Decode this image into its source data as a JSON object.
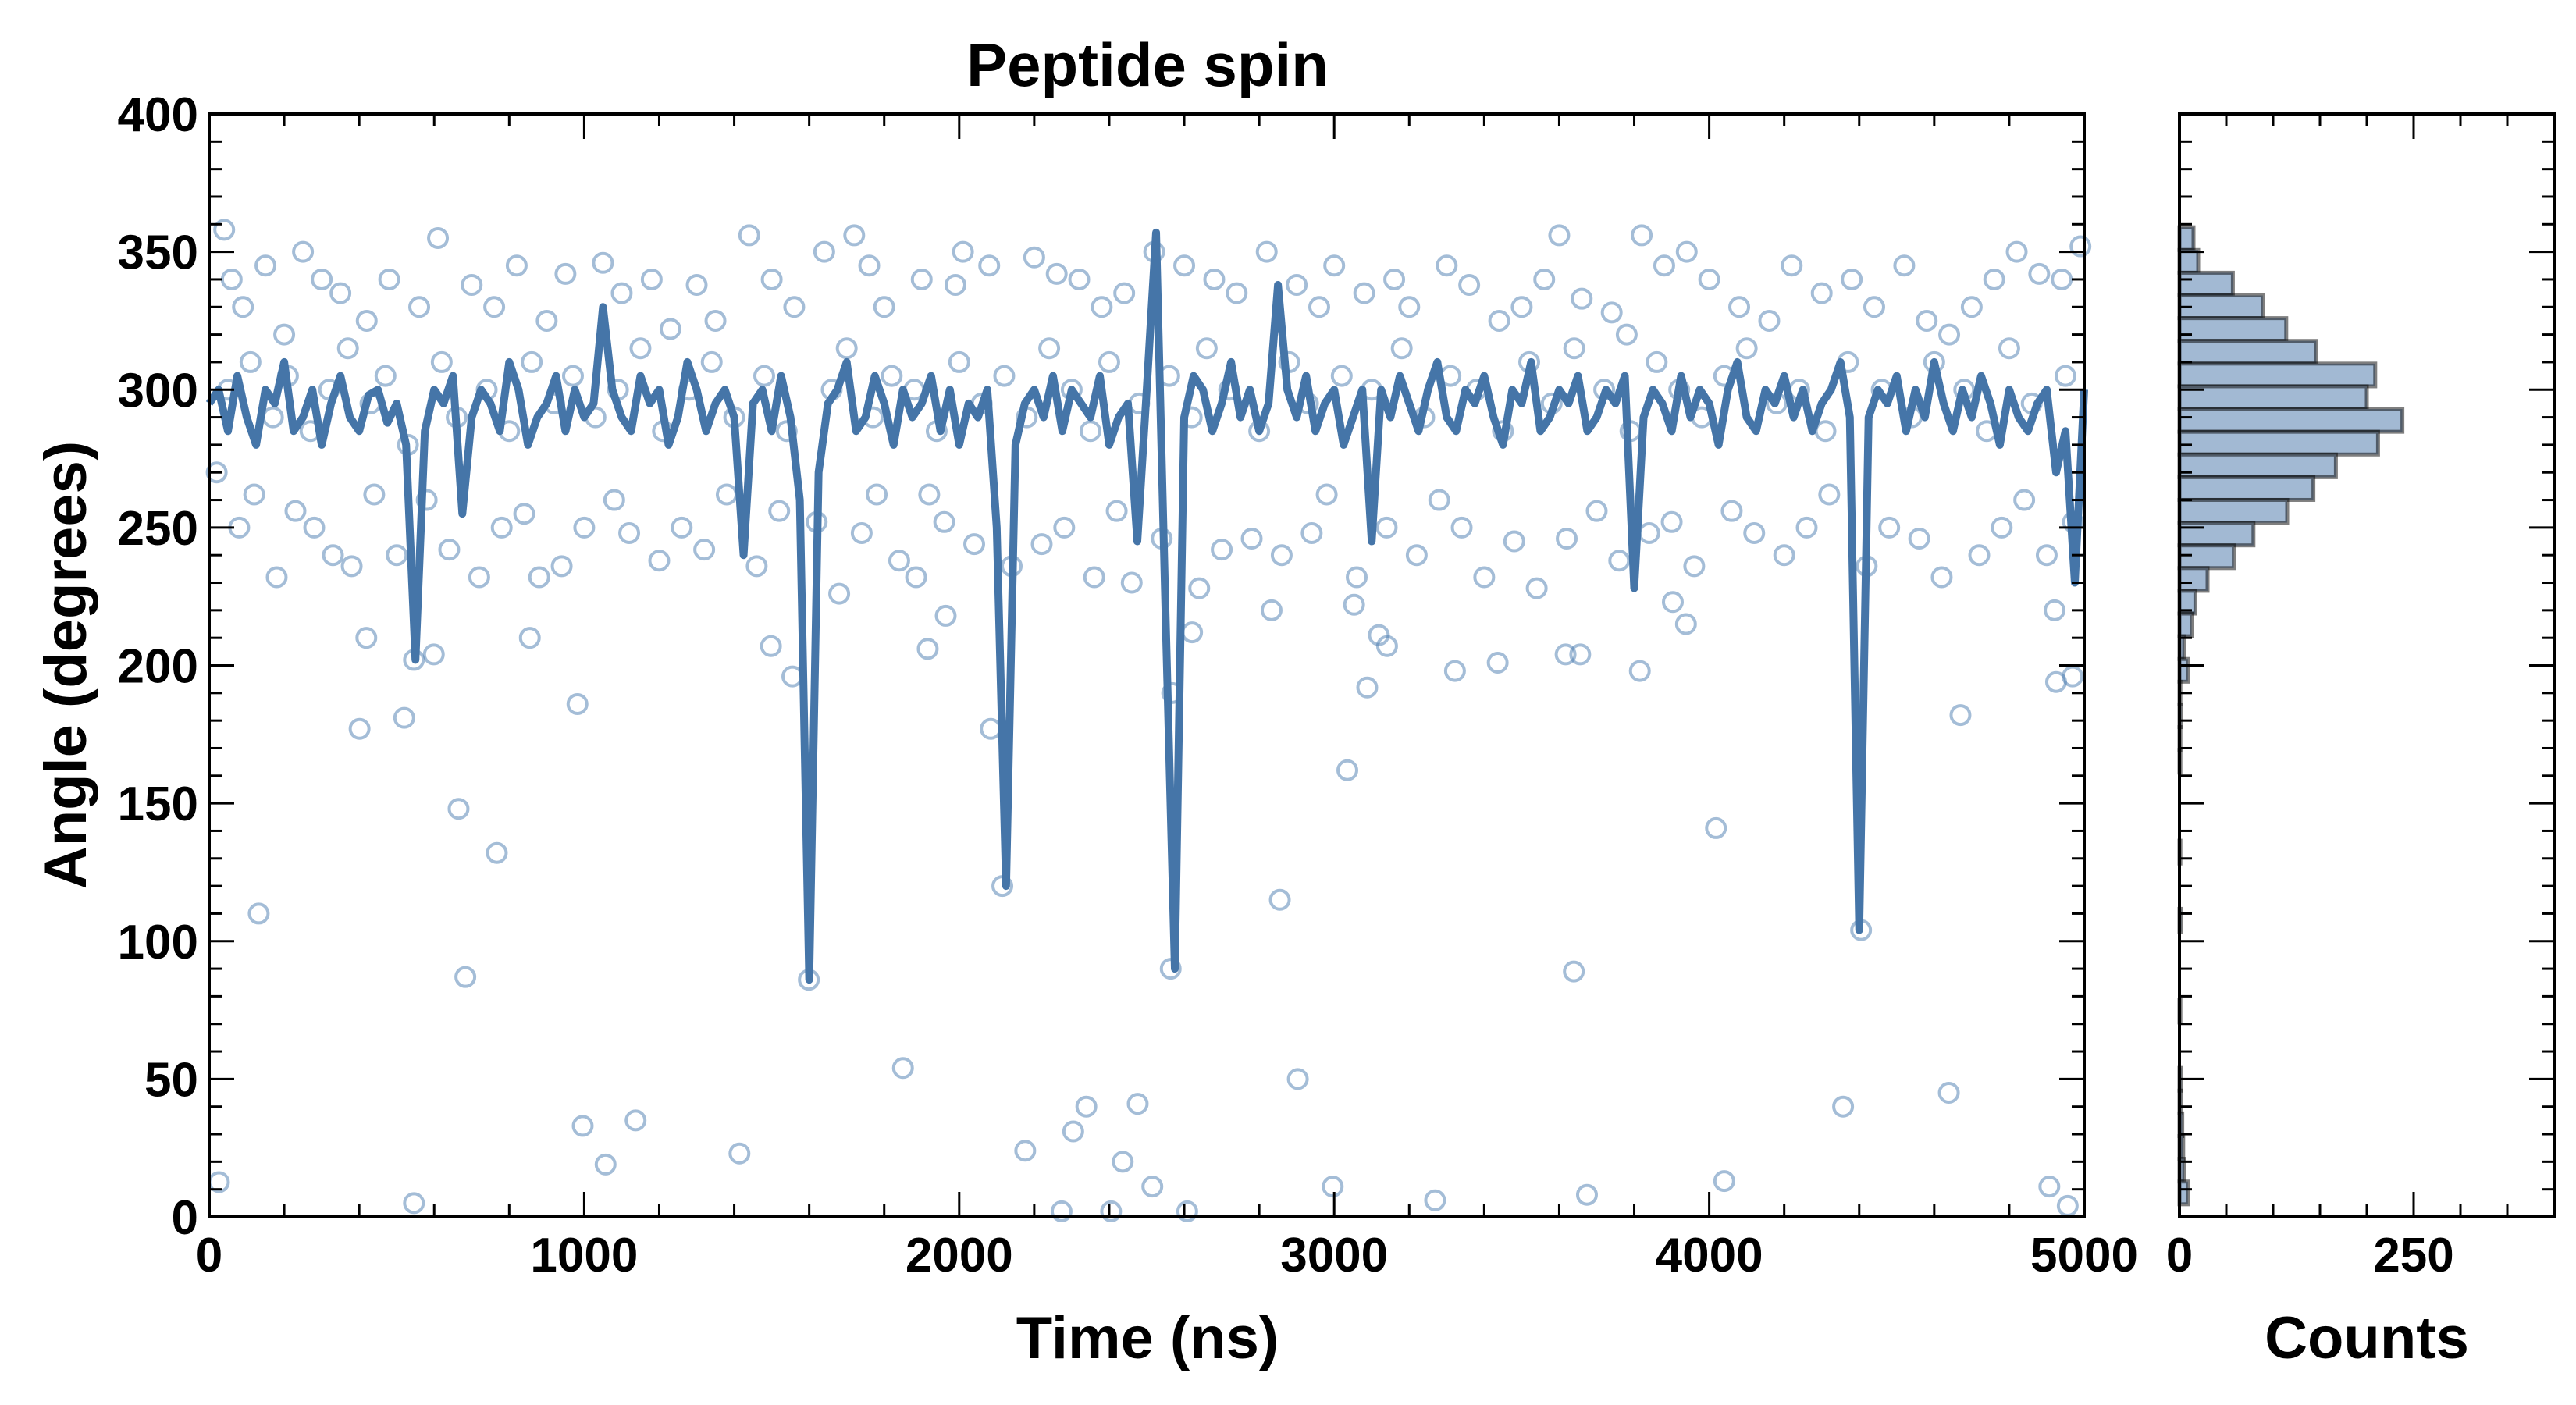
{
  "chart_data": [
    {
      "type": "scatter+line",
      "title": "Peptide spin",
      "xlabel": "Time (ns)",
      "ylabel": "Angle (degrees)",
      "xlim": [
        0,
        5000
      ],
      "ylim": [
        0,
        400
      ],
      "xticks": [
        "0",
        "1000",
        "2000",
        "3000",
        "4000",
        "5000"
      ],
      "yticks": [
        "0",
        "50",
        "100",
        "150",
        "200",
        "250",
        "300",
        "350",
        "400"
      ],
      "grid": false,
      "scatter_color": "#4a7bb0",
      "line_color": "#4575a8",
      "scatter_points": [
        [
          26,
          12.6
        ],
        [
          132,
          110
        ],
        [
          401,
          177
        ],
        [
          419,
          210
        ],
        [
          520,
          181
        ],
        [
          546,
          202
        ],
        [
          599,
          204
        ],
        [
          665,
          148
        ],
        [
          683,
          87
        ],
        [
          767,
          132
        ],
        [
          855,
          210
        ],
        [
          982,
          186
        ],
        [
          996,
          33
        ],
        [
          1057,
          19
        ],
        [
          1137,
          35
        ],
        [
          1414,
          23
        ],
        [
          546,
          5
        ],
        [
          1599,
          86
        ],
        [
          1850,
          54
        ],
        [
          1916,
          206
        ],
        [
          2084,
          177
        ],
        [
          2115,
          120
        ],
        [
          2176,
          24
        ],
        [
          2273,
          2
        ],
        [
          2304,
          31
        ],
        [
          2339,
          40
        ],
        [
          2405,
          2
        ],
        [
          2436,
          20
        ],
        [
          2476,
          41
        ],
        [
          2515,
          11
        ],
        [
          2564,
          90
        ],
        [
          2608,
          2
        ],
        [
          2568,
          190
        ],
        [
          2621,
          212
        ],
        [
          2855,
          115
        ],
        [
          2903,
          50
        ],
        [
          2996,
          11
        ],
        [
          3035,
          162
        ],
        [
          3088,
          192
        ],
        [
          3269,
          6
        ],
        [
          3322,
          198
        ],
        [
          3436,
          201
        ],
        [
          3639,
          89
        ],
        [
          3674,
          8
        ],
        [
          4018,
          141
        ],
        [
          4040,
          13
        ],
        [
          4357,
          40
        ],
        [
          4405,
          104
        ],
        [
          4639,
          45
        ],
        [
          4670,
          182
        ],
        [
          4907,
          11
        ],
        [
          4956,
          4
        ],
        [
          4925,
          194
        ],
        [
          4969,
          196
        ],
        [
          4921,
          220
        ],
        [
          3656,
          204
        ],
        [
          3617,
          204
        ],
        [
          3815,
          198
        ],
        [
          3938,
          215
        ],
        [
          3903,
          223
        ],
        [
          1498,
          207
        ],
        [
          1555,
          196
        ],
        [
          1964,
          218
        ],
        [
          1885,
          232
        ],
        [
          2833,
          220
        ],
        [
          3053,
          222
        ],
        [
          3119,
          211
        ],
        [
          3141,
          207
        ],
        [
          40,
          358
        ],
        [
          60,
          340
        ],
        [
          90,
          330
        ],
        [
          150,
          345
        ],
        [
          200,
          320
        ],
        [
          250,
          350
        ],
        [
          300,
          340
        ],
        [
          350,
          335
        ],
        [
          420,
          325
        ],
        [
          480,
          340
        ],
        [
          560,
          330
        ],
        [
          610,
          355
        ],
        [
          700,
          338
        ],
        [
          760,
          330
        ],
        [
          820,
          345
        ],
        [
          900,
          325
        ],
        [
          950,
          342
        ],
        [
          1050,
          346
        ],
        [
          1100,
          335
        ],
        [
          1180,
          340
        ],
        [
          1230,
          322
        ],
        [
          1300,
          338
        ],
        [
          1350,
          325
        ],
        [
          1440,
          356
        ],
        [
          1500,
          340
        ],
        [
          1560,
          330
        ],
        [
          1640,
          350
        ],
        [
          1720,
          356
        ],
        [
          1760,
          345
        ],
        [
          1800,
          330
        ],
        [
          1900,
          340
        ],
        [
          1990,
          338
        ],
        [
          2010,
          350
        ],
        [
          2080,
          345
        ],
        [
          2200,
          348
        ],
        [
          2260,
          342
        ],
        [
          2320,
          340
        ],
        [
          2380,
          330
        ],
        [
          2440,
          335
        ],
        [
          2520,
          350
        ],
        [
          2600,
          345
        ],
        [
          2680,
          340
        ],
        [
          2740,
          335
        ],
        [
          2820,
          350
        ],
        [
          2900,
          338
        ],
        [
          2960,
          330
        ],
        [
          3000,
          345
        ],
        [
          3080,
          335
        ],
        [
          3160,
          340
        ],
        [
          3200,
          330
        ],
        [
          3300,
          345
        ],
        [
          3360,
          338
        ],
        [
          3440,
          325
        ],
        [
          3500,
          330
        ],
        [
          3560,
          340
        ],
        [
          3600,
          356
        ],
        [
          3660,
          333
        ],
        [
          3740,
          328
        ],
        [
          3780,
          320
        ],
        [
          3820,
          356
        ],
        [
          3880,
          345
        ],
        [
          3940,
          350
        ],
        [
          4000,
          340
        ],
        [
          4080,
          330
        ],
        [
          4160,
          325
        ],
        [
          4220,
          345
        ],
        [
          4300,
          335
        ],
        [
          4380,
          340
        ],
        [
          4440,
          330
        ],
        [
          4520,
          345
        ],
        [
          4580,
          325
        ],
        [
          4640,
          320
        ],
        [
          4700,
          330
        ],
        [
          4760,
          340
        ],
        [
          4820,
          350
        ],
        [
          4880,
          342
        ],
        [
          4940,
          340
        ],
        [
          4990,
          352
        ],
        [
          20,
          270
        ],
        [
          80,
          250
        ],
        [
          120,
          262
        ],
        [
          180,
          232
        ],
        [
          230,
          256
        ],
        [
          280,
          250
        ],
        [
          330,
          240
        ],
        [
          380,
          236
        ],
        [
          440,
          262
        ],
        [
          500,
          240
        ],
        [
          580,
          260
        ],
        [
          640,
          242
        ],
        [
          720,
          232
        ],
        [
          780,
          250
        ],
        [
          840,
          255
        ],
        [
          880,
          232
        ],
        [
          940,
          236
        ],
        [
          1000,
          250
        ],
        [
          1080,
          260
        ],
        [
          1120,
          248
        ],
        [
          1200,
          238
        ],
        [
          1260,
          250
        ],
        [
          1320,
          242
        ],
        [
          1380,
          262
        ],
        [
          1460,
          236
        ],
        [
          1520,
          256
        ],
        [
          1620,
          252
        ],
        [
          1680,
          226
        ],
        [
          1740,
          248
        ],
        [
          1780,
          262
        ],
        [
          1840,
          238
        ],
        [
          1920,
          262
        ],
        [
          1960,
          252
        ],
        [
          2040,
          244
        ],
        [
          2140,
          236
        ],
        [
          2220,
          244
        ],
        [
          2280,
          250
        ],
        [
          2360,
          232
        ],
        [
          2420,
          256
        ],
        [
          2460,
          230
        ],
        [
          2540,
          246
        ],
        [
          2640,
          228
        ],
        [
          2700,
          242
        ],
        [
          2780,
          246
        ],
        [
          2860,
          240
        ],
        [
          2940,
          248
        ],
        [
          2980,
          262
        ],
        [
          3060,
          232
        ],
        [
          3140,
          250
        ],
        [
          3220,
          240
        ],
        [
          3280,
          260
        ],
        [
          3340,
          250
        ],
        [
          3400,
          232
        ],
        [
          3480,
          245
        ],
        [
          3540,
          228
        ],
        [
          3620,
          246
        ],
        [
          3700,
          256
        ],
        [
          3760,
          238
        ],
        [
          3840,
          248
        ],
        [
          3900,
          252
        ],
        [
          3960,
          236
        ],
        [
          4060,
          256
        ],
        [
          4120,
          248
        ],
        [
          4200,
          240
        ],
        [
          4260,
          250
        ],
        [
          4320,
          262
        ],
        [
          4420,
          236
        ],
        [
          4480,
          250
        ],
        [
          4560,
          246
        ],
        [
          4620,
          232
        ],
        [
          4720,
          240
        ],
        [
          4780,
          250
        ],
        [
          4840,
          260
        ],
        [
          4900,
          240
        ],
        [
          4970,
          252
        ],
        [
          50,
          300
        ],
        [
          110,
          310
        ],
        [
          170,
          290
        ],
        [
          210,
          305
        ],
        [
          270,
          285
        ],
        [
          320,
          300
        ],
        [
          370,
          315
        ],
        [
          430,
          295
        ],
        [
          470,
          305
        ],
        [
          530,
          280
        ],
        [
          620,
          310
        ],
        [
          660,
          290
        ],
        [
          740,
          300
        ],
        [
          800,
          285
        ],
        [
          860,
          310
        ],
        [
          920,
          295
        ],
        [
          970,
          305
        ],
        [
          1030,
          290
        ],
        [
          1090,
          300
        ],
        [
          1150,
          315
        ],
        [
          1210,
          285
        ],
        [
          1280,
          300
        ],
        [
          1340,
          310
        ],
        [
          1400,
          290
        ],
        [
          1480,
          305
        ],
        [
          1540,
          285
        ],
        [
          1660,
          300
        ],
        [
          1700,
          315
        ],
        [
          1770,
          290
        ],
        [
          1820,
          305
        ],
        [
          1880,
          300
        ],
        [
          1940,
          285
        ],
        [
          2000,
          310
        ],
        [
          2060,
          295
        ],
        [
          2120,
          305
        ],
        [
          2180,
          290
        ],
        [
          2240,
          315
        ],
        [
          2300,
          300
        ],
        [
          2350,
          285
        ],
        [
          2400,
          310
        ],
        [
          2480,
          295
        ],
        [
          2560,
          305
        ],
        [
          2620,
          290
        ],
        [
          2660,
          315
        ],
        [
          2720,
          300
        ],
        [
          2800,
          285
        ],
        [
          2880,
          310
        ],
        [
          2930,
          295
        ],
        [
          3020,
          305
        ],
        [
          3100,
          300
        ],
        [
          3180,
          315
        ],
        [
          3240,
          290
        ],
        [
          3310,
          305
        ],
        [
          3380,
          300
        ],
        [
          3450,
          285
        ],
        [
          3520,
          310
        ],
        [
          3580,
          295
        ],
        [
          3640,
          315
        ],
        [
          3720,
          300
        ],
        [
          3790,
          285
        ],
        [
          3860,
          310
        ],
        [
          3920,
          300
        ],
        [
          3980,
          290
        ],
        [
          4040,
          305
        ],
        [
          4100,
          315
        ],
        [
          4180,
          295
        ],
        [
          4240,
          300
        ],
        [
          4310,
          285
        ],
        [
          4370,
          310
        ],
        [
          4460,
          300
        ],
        [
          4540,
          290
        ],
        [
          4600,
          310
        ],
        [
          4680,
          300
        ],
        [
          4740,
          285
        ],
        [
          4800,
          315
        ],
        [
          4860,
          295
        ],
        [
          4950,
          305
        ]
      ],
      "line": {
        "x_start": 0,
        "x_step": 25,
        "y": [
          295,
          300,
          285,
          305,
          290,
          280,
          300,
          295,
          310,
          285,
          290,
          300,
          280,
          295,
          305,
          290,
          285,
          298,
          300,
          288,
          295,
          280,
          202,
          285,
          300,
          295,
          305,
          255,
          290,
          300,
          295,
          285,
          310,
          300,
          280,
          290,
          295,
          305,
          285,
          300,
          290,
          295,
          330,
          300,
          290,
          285,
          305,
          295,
          300,
          280,
          290,
          310,
          300,
          285,
          295,
          300,
          290,
          240,
          295,
          300,
          285,
          305,
          290,
          260,
          86,
          270,
          295,
          300,
          310,
          285,
          290,
          305,
          295,
          280,
          300,
          290,
          295,
          305,
          285,
          300,
          280,
          295,
          290,
          300,
          250,
          120,
          280,
          295,
          300,
          290,
          305,
          285,
          300,
          295,
          290,
          305,
          280,
          290,
          295,
          245,
          300,
          357,
          220,
          90,
          290,
          305,
          300,
          285,
          295,
          310,
          290,
          300,
          285,
          295,
          338,
          300,
          290,
          305,
          285,
          295,
          300,
          280,
          290,
          300,
          245,
          300,
          290,
          305,
          295,
          285,
          300,
          310,
          290,
          285,
          300,
          295,
          305,
          290,
          280,
          300,
          295,
          310,
          285,
          290,
          300,
          295,
          305,
          285,
          290,
          300,
          295,
          305,
          228,
          290,
          300,
          295,
          285,
          305,
          290,
          300,
          295,
          280,
          300,
          310,
          290,
          285,
          300,
          295,
          305,
          290,
          300,
          285,
          295,
          300,
          310,
          290,
          104,
          290,
          300,
          295,
          305,
          285,
          300,
          290,
          310,
          295,
          285,
          300,
          290,
          305,
          295,
          280,
          300,
          290,
          285,
          295,
          300,
          270,
          285,
          230,
          300
        ]
      }
    },
    {
      "type": "bar",
      "orientation": "horizontal",
      "xlabel": "Counts",
      "xlim": [
        0,
        400
      ],
      "xticks": [
        "0",
        "250"
      ],
      "ylim": [
        0,
        400
      ],
      "fill_color": "#a2b9d3",
      "bin_top": 358.9,
      "bin_width": 8.24,
      "counts": [
        15,
        20,
        57,
        89,
        114,
        146,
        209,
        200,
        238,
        212,
        167,
        143,
        115,
        79,
        58,
        30,
        17,
        13,
        5,
        9,
        1,
        2,
        1,
        1,
        0,
        0,
        0,
        1,
        0,
        0,
        2,
        0,
        0,
        0,
        1,
        0,
        0,
        2,
        2,
        3,
        4,
        5,
        9
      ]
    }
  ]
}
